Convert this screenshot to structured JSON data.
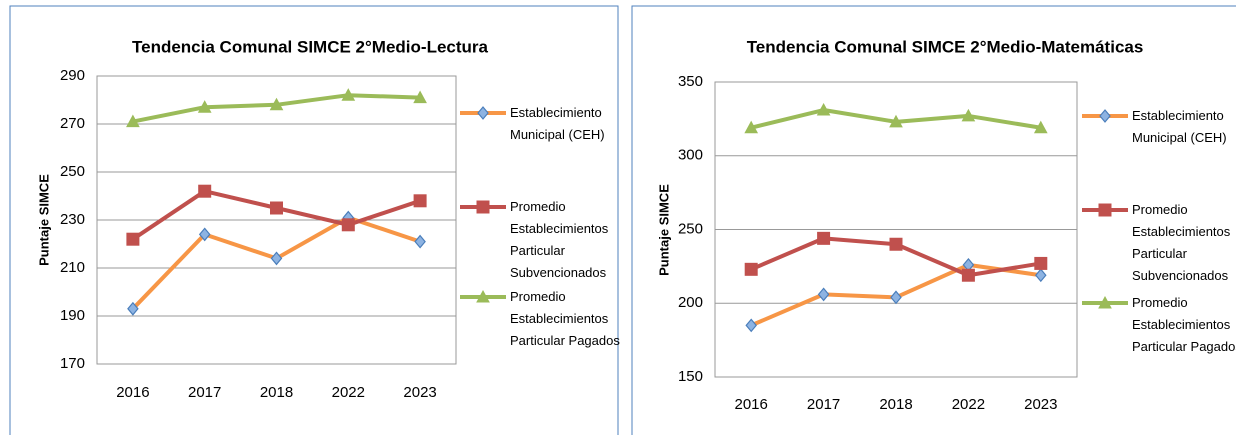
{
  "chart_data": [
    {
      "type": "line",
      "title": "Tendencia Comunal SIMCE 2°Medio-Lectura",
      "y_label": "Puntaje SIMCE",
      "categories": [
        "2016",
        "2017",
        "2018",
        "2022",
        "2023"
      ],
      "ylim": [
        170,
        290
      ],
      "yticks": [
        170,
        190,
        210,
        230,
        250,
        270,
        290
      ],
      "grid": true,
      "legend": "right",
      "series": [
        {
          "name": "Establecimiento Municipal (CEH)",
          "color": "#f79646",
          "marker": "diamond",
          "marker_color": "#8db3e2",
          "values": [
            193,
            224,
            214,
            231,
            221
          ]
        },
        {
          "name": "Promedio Establecimientos Particular Subvencionados",
          "color": "#c0504d",
          "marker": "square",
          "marker_color": "#c0504d",
          "values": [
            222,
            242,
            235,
            228,
            238
          ]
        },
        {
          "name": "Promedio Establecimientos Particular Pagados",
          "color": "#9bbb59",
          "marker": "triangle",
          "marker_color": "#9bbb59",
          "values": [
            271,
            277,
            278,
            282,
            281
          ]
        }
      ]
    },
    {
      "type": "line",
      "title": "Tendencia Comunal SIMCE 2°Medio-Matemáticas",
      "y_label": "Puntaje SIMCE",
      "categories": [
        "2016",
        "2017",
        "2018",
        "2022",
        "2023"
      ],
      "ylim": [
        150,
        350
      ],
      "yticks": [
        150,
        200,
        250,
        300,
        350
      ],
      "grid": true,
      "legend": "right",
      "series": [
        {
          "name": "Establecimiento Municipal (CEH)",
          "color": "#f79646",
          "marker": "diamond",
          "marker_color": "#8db3e2",
          "values": [
            185,
            206,
            204,
            226,
            219
          ]
        },
        {
          "name": "Promedio Establecimientos Particular Subvencionados",
          "color": "#c0504d",
          "marker": "square",
          "marker_color": "#c0504d",
          "values": [
            223,
            244,
            240,
            219,
            227
          ]
        },
        {
          "name": "Promedio Establecimientos Particular Pagados",
          "color": "#9bbb59",
          "marker": "triangle",
          "marker_color": "#9bbb59",
          "values": [
            319,
            331,
            323,
            327,
            319
          ]
        }
      ]
    }
  ]
}
